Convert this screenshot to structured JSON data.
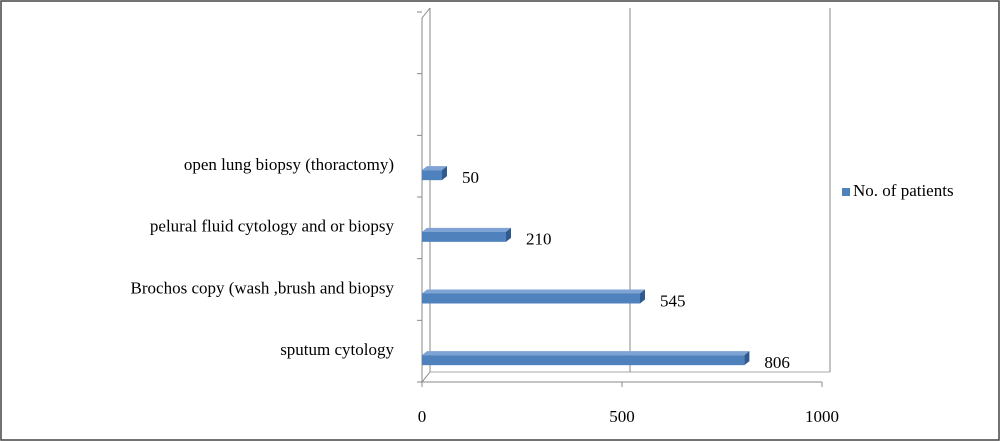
{
  "chart_data": {
    "type": "bar",
    "orientation": "horizontal",
    "categories": [
      "sputum cytology",
      "Brochos copy (wash ,brush and biopsy",
      "pelural fluid cytology and or biopsy",
      "open lung biopsy (thoractomy)",
      null,
      null
    ],
    "series": [
      {
        "name": "No. of patients",
        "color": "#4f81bd",
        "values": [
          806,
          545,
          210,
          50,
          null,
          null
        ]
      }
    ],
    "xlim": [
      0,
      1000
    ],
    "xticks": [
      0,
      500,
      1000
    ],
    "grid": true,
    "legend": "right"
  }
}
